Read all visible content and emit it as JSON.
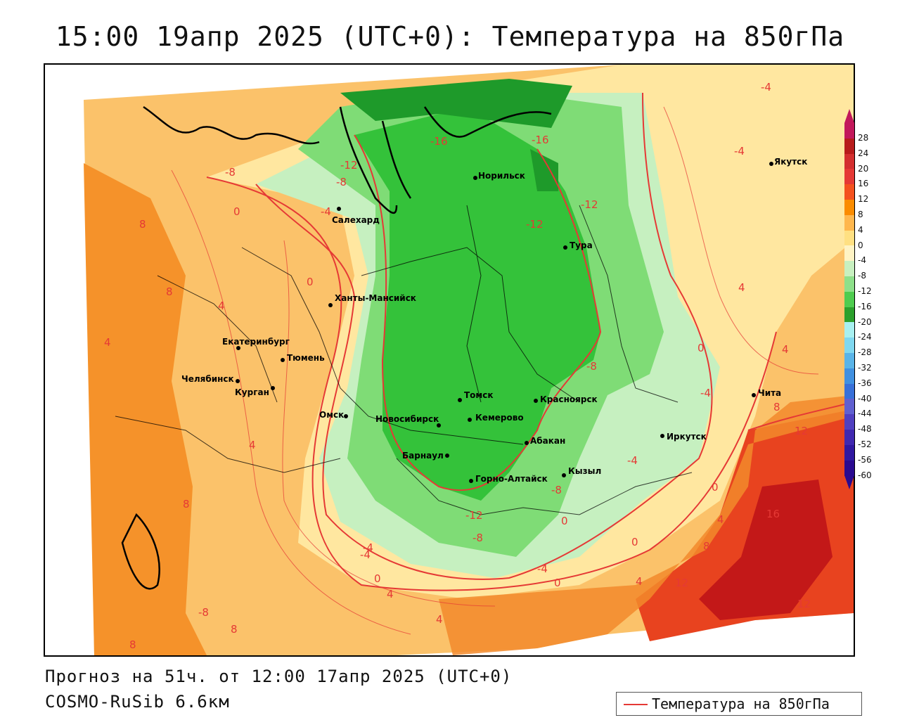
{
  "title": "15:00 19апр 2025 (UTC+0): Температура на 850гПа",
  "footer": {
    "forecast": "Прогноз на 51ч. от 12:00 17апр 2025 (UTC+0)",
    "model": "COSMO-RuSib 6.6км"
  },
  "legend": {
    "label": "Температура на 850гПа",
    "color": "#e53935"
  },
  "scale": {
    "labels": [
      "28",
      "24",
      "20",
      "16",
      "12",
      "8",
      "4",
      "0",
      "-4",
      "-8",
      "-12",
      "-16",
      "-20",
      "-24",
      "-28",
      "-32",
      "-36",
      "-40",
      "-44",
      "-48",
      "-52",
      "-56",
      "-60"
    ],
    "colors": [
      "#c2185b",
      "#b71c1c",
      "#d32f2f",
      "#e53935",
      "#f4511e",
      "#fb8c00",
      "#ffb74d",
      "#ffe082",
      "#fff3c4",
      "#c8f0c0",
      "#8ee08a",
      "#4fcc4f",
      "#2ca02c",
      "#a8f0f0",
      "#80d8f0",
      "#5ab4e8",
      "#4090e0",
      "#3870d8",
      "#6060d0",
      "#5040c0",
      "#4028b0",
      "#3018a0",
      "#2a0a90"
    ]
  },
  "cities": [
    {
      "name": "Норильск"
    },
    {
      "name": "Якутск"
    },
    {
      "name": "Салехард"
    },
    {
      "name": "Тура"
    },
    {
      "name": "Ханты-Мансийск"
    },
    {
      "name": "Екатеринбург"
    },
    {
      "name": "Тюмень"
    },
    {
      "name": "Челябинск"
    },
    {
      "name": "Курган"
    },
    {
      "name": "Омск"
    },
    {
      "name": "Томск"
    },
    {
      "name": "Новосибирск"
    },
    {
      "name": "Кемерово"
    },
    {
      "name": "Красноярск"
    },
    {
      "name": "Абакан"
    },
    {
      "name": "Барнаул"
    },
    {
      "name": "Горно-Алтайск"
    },
    {
      "name": "Кызыл"
    },
    {
      "name": "Иркутск"
    },
    {
      "name": "Чита"
    }
  ],
  "isolines": [
    "-4",
    "-4",
    "-16",
    "-16",
    "-12",
    "-12",
    "-8",
    "-8",
    "-12",
    "0",
    "-4",
    "8",
    "8",
    "4",
    "0",
    "4",
    "-8",
    "-4",
    "0",
    "4",
    "4",
    "8",
    "-12",
    "-8",
    "-4",
    "0",
    "4",
    "12",
    "16",
    "12",
    "8",
    "4",
    "-8",
    "0",
    "-4",
    "0",
    "4",
    "8",
    "4",
    "0",
    "-4",
    "4",
    "8",
    "12",
    "8",
    "0",
    "-8",
    "-4"
  ]
}
